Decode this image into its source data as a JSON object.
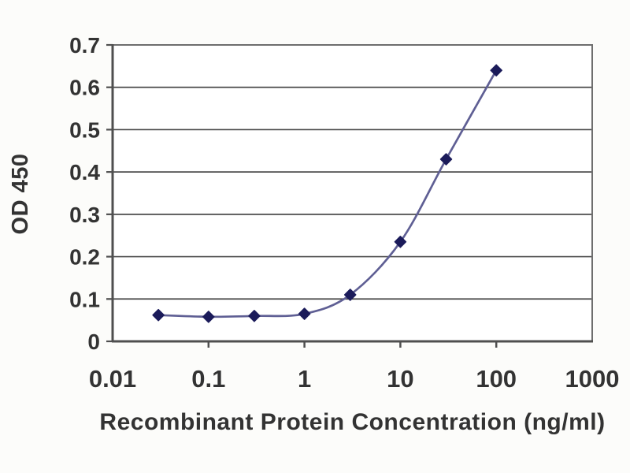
{
  "chart_data": {
    "type": "line",
    "title": "",
    "xlabel": "Recombinant Protein Concentration (ng/ml)",
    "ylabel": "OD 450",
    "x_scale": "log",
    "xlim": [
      0.01,
      1000
    ],
    "ylim": [
      0,
      0.7
    ],
    "x_ticks": [
      0.01,
      0.1,
      1,
      10,
      100,
      1000
    ],
    "x_tick_labels": [
      "0.01",
      "0.1",
      "1",
      "10",
      "100",
      "1000"
    ],
    "y_ticks": [
      0,
      0.1,
      0.2,
      0.3,
      0.4,
      0.5,
      0.6,
      0.7
    ],
    "y_tick_labels": [
      "0",
      "0.1",
      "0.2",
      "0.3",
      "0.4",
      "0.5",
      "0.6",
      "0.7"
    ],
    "grid": "horizontal",
    "legend": "none",
    "series": [
      {
        "name": "OD 450",
        "marker": "diamond",
        "x": [
          0.03,
          0.1,
          0.3,
          1,
          3,
          10,
          30,
          100
        ],
        "y": [
          0.062,
          0.058,
          0.06,
          0.065,
          0.11,
          0.235,
          0.43,
          0.64
        ]
      }
    ]
  },
  "colors": {
    "background": "#fcfcfa",
    "plot_background": "#ffffff",
    "gridline": "#4a4a4a",
    "plot_border": "#6e6e6e",
    "axis_line": "#4f4f4f",
    "tick": "#4f4f4f",
    "series_line": "#5f5f94",
    "series_marker": "#1b1b5a",
    "label_text": "#333333"
  }
}
